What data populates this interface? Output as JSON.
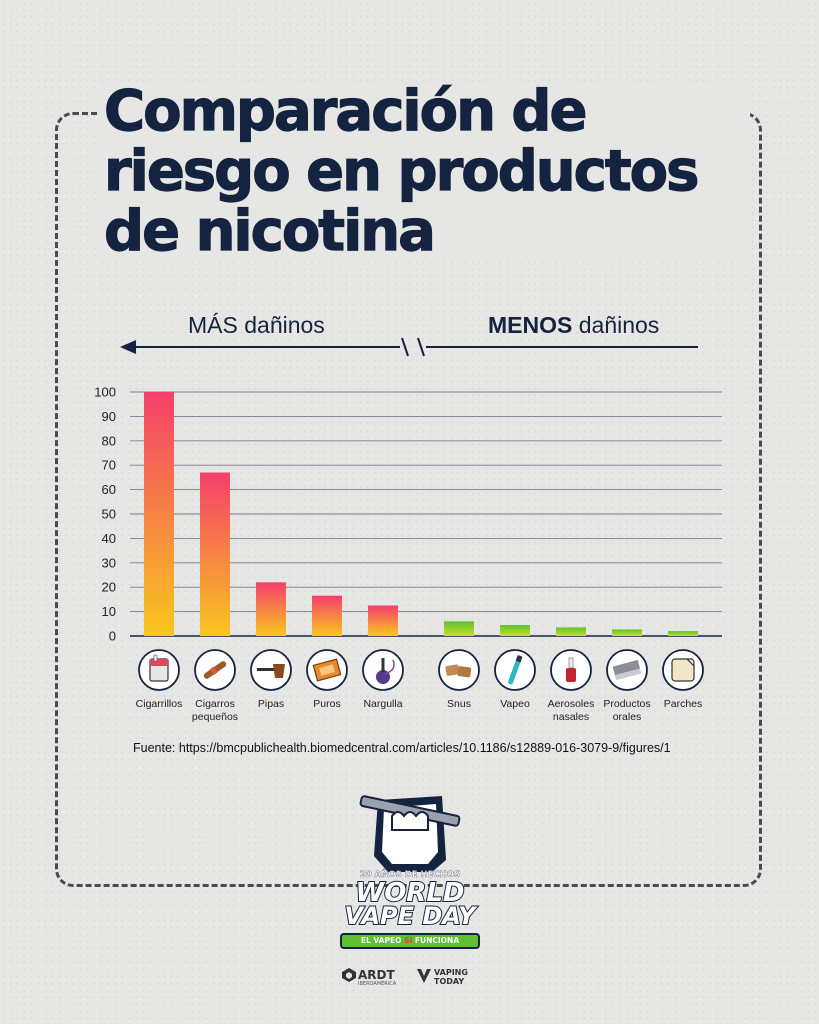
{
  "title": {
    "line1": "Comparación de",
    "line2": "riesgo en productos",
    "line3": "de nicotina"
  },
  "direction": {
    "left_bold": "MÁS",
    "left_rest": " dañinos",
    "right_bold": "MENOS",
    "right_rest": " dañinos"
  },
  "chart_data": {
    "type": "bar",
    "y_ticks": [
      "0",
      "10",
      "20",
      "30",
      "40",
      "50",
      "60",
      "70",
      "80",
      "90",
      "100"
    ],
    "ylim": [
      0,
      100
    ],
    "grid": true,
    "categories": [
      {
        "label": [
          "Cigarrillos"
        ],
        "value": 100,
        "group": "mas",
        "icon": "cigarette-pack-icon"
      },
      {
        "label": [
          "Cigarros",
          "pequeños"
        ],
        "value": 67,
        "group": "mas",
        "icon": "cigar-icon"
      },
      {
        "label": [
          "Pipas"
        ],
        "value": 22,
        "group": "mas",
        "icon": "pipe-icon"
      },
      {
        "label": [
          "Puros"
        ],
        "value": 16.5,
        "group": "mas",
        "icon": "cigar-box-icon"
      },
      {
        "label": [
          "Nargulla"
        ],
        "value": 12.5,
        "group": "mas",
        "icon": "hookah-icon"
      },
      {
        "label": [
          "Snus"
        ],
        "value": 6,
        "group": "menos",
        "icon": "snus-pouch-icon"
      },
      {
        "label": [
          "Vapeo"
        ],
        "value": 4.5,
        "group": "menos",
        "icon": "vape-pen-icon"
      },
      {
        "label": [
          "Aerosoles",
          "nasales"
        ],
        "value": 3.5,
        "group": "menos",
        "icon": "nasal-spray-icon"
      },
      {
        "label": [
          "Productos",
          "orales"
        ],
        "value": 2.7,
        "group": "menos",
        "icon": "nicotine-gum-icon"
      },
      {
        "label": [
          "Parches"
        ],
        "value": 2,
        "group": "menos",
        "icon": "nicotine-patch-icon"
      }
    ],
    "colors": {
      "harmful_top": "#f53f6b",
      "harmful_bottom": "#f9c71e",
      "less_top": "#5fc22f",
      "less_bottom": "#c6e02a",
      "grid": "#7a7f8c",
      "axis": "#14233f"
    }
  },
  "source": "Fuente: https://bmcpublichealth.biomedcentral.com/articles/10.1186/s12889-016-3079-9/figures/1",
  "logo": {
    "top_text": "20 AÑOS DE HECHOS",
    "line1": "WORLD",
    "line2": "VAPE DAY",
    "slogan_a": "EL VAPEO ",
    "slogan_si": "SÍ",
    "slogan_b": " FUNCIONA"
  },
  "sponsors": {
    "ardt": "ARDT",
    "ardt_sub": "IBEROAMÉRICA",
    "vt_line1": "VAPING",
    "vt_line2": "TODAY"
  }
}
